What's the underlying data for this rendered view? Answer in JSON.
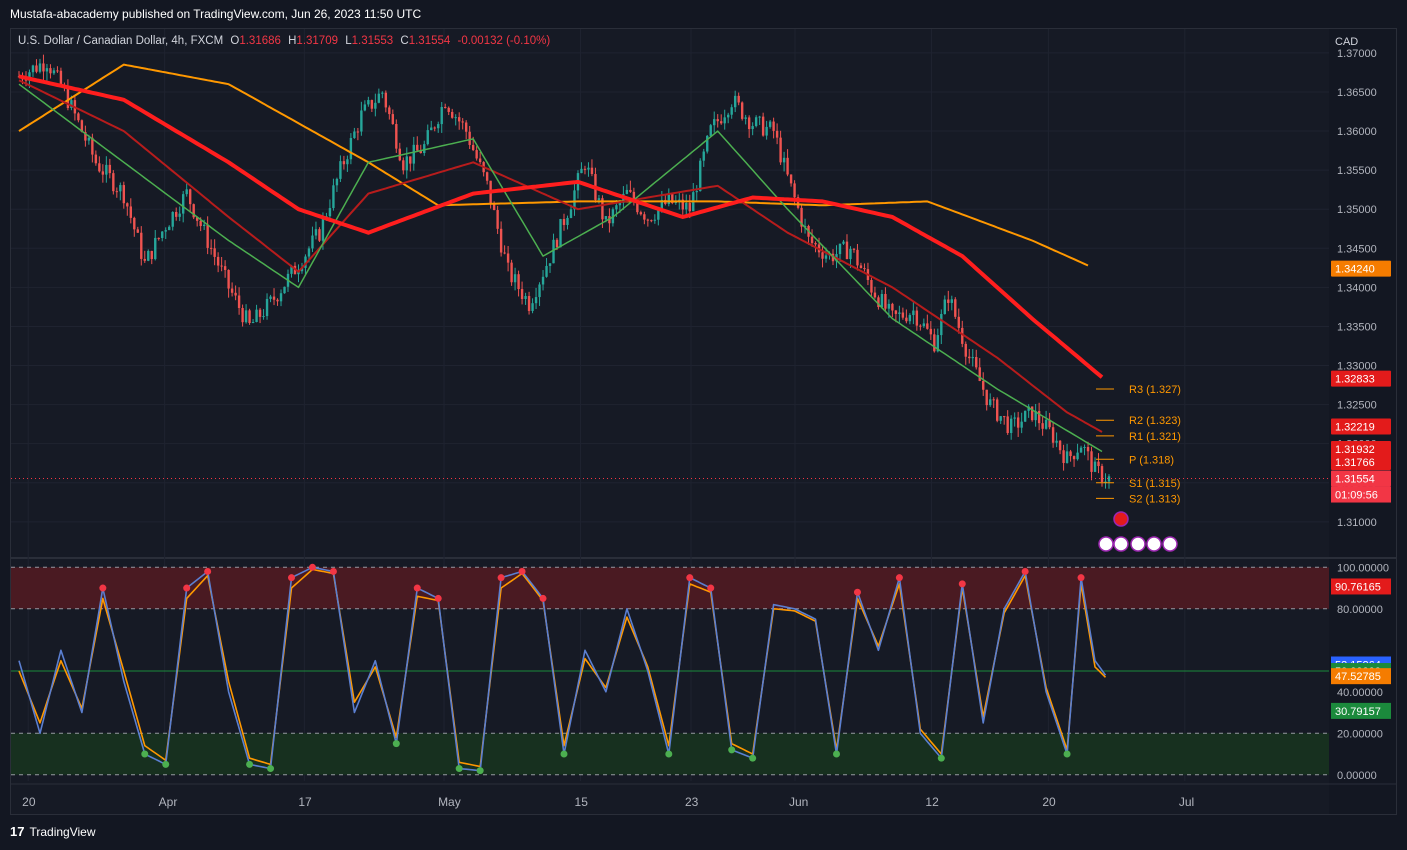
{
  "header": {
    "published": "Mustafa-abacademy published on TradingView.com, Jun 26, 2023 11:50 UTC"
  },
  "legend": {
    "symbol": "U.S. Dollar / Canadian Dollar, 4h, FXCM",
    "o_label": "O",
    "o_value": "1.31686",
    "h_label": "H",
    "h_value": "1.31709",
    "l_label": "L",
    "l_value": "1.31553",
    "c_label": "C",
    "c_value": "1.31554",
    "change": "-0.00132 (-0.10%)"
  },
  "footer": {
    "brand": "TradingView"
  },
  "colors": {
    "bg": "#161a25",
    "grid": "#1f2330",
    "up": "#26a69a",
    "down": "#ef5350",
    "ema_fast_up": "#4caf50",
    "ema_slow_red": "#ff1e1e",
    "ema_mid_red": "#b71c1c",
    "sine": "#ff9800",
    "stoch_k": "#5b7fd1",
    "stoch_d": "#ff9800",
    "ob_zone": "#4a1a22",
    "os_zone": "#17301f",
    "pivot": "#ff9800"
  },
  "chart_data": [
    {
      "type": "candlestick",
      "title": "U.S. Dollar / Canadian Dollar, 4h, FXCM",
      "currency": "CAD",
      "ylim": [
        1.3055,
        1.3705
      ],
      "y_ticks": [
        "1.37000",
        "1.36500",
        "1.36000",
        "1.35500",
        "1.35000",
        "1.34500",
        "1.34000",
        "1.33500",
        "1.33000",
        "1.32500",
        "1.32000",
        "1.31500",
        "1.31000"
      ],
      "x_ticks": [
        "20",
        "Apr",
        "17",
        "May",
        "15",
        "23",
        "Jun",
        "12",
        "20",
        "Jul"
      ],
      "price_path": [
        [
          0,
          1.367
        ],
        [
          8,
          1.369
        ],
        [
          14,
          1.364
        ],
        [
          22,
          1.356
        ],
        [
          30,
          1.352
        ],
        [
          36,
          1.343
        ],
        [
          42,
          1.348
        ],
        [
          48,
          1.352
        ],
        [
          54,
          1.346
        ],
        [
          60,
          1.34
        ],
        [
          66,
          1.335
        ],
        [
          72,
          1.338
        ],
        [
          80,
          1.343
        ],
        [
          86,
          1.347
        ],
        [
          92,
          1.355
        ],
        [
          98,
          1.362
        ],
        [
          104,
          1.365
        ],
        [
          110,
          1.356
        ],
        [
          116,
          1.358
        ],
        [
          122,
          1.364
        ],
        [
          128,
          1.36
        ],
        [
          134,
          1.353
        ],
        [
          140,
          1.342
        ],
        [
          146,
          1.338
        ],
        [
          152,
          1.344
        ],
        [
          158,
          1.351
        ],
        [
          162,
          1.356
        ],
        [
          168,
          1.348
        ],
        [
          174,
          1.352
        ],
        [
          180,
          1.349
        ],
        [
          186,
          1.351
        ],
        [
          192,
          1.35
        ],
        [
          198,
          1.36
        ],
        [
          204,
          1.364
        ],
        [
          210,
          1.361
        ],
        [
          216,
          1.36
        ],
        [
          220,
          1.354
        ],
        [
          226,
          1.346
        ],
        [
          232,
          1.344
        ],
        [
          238,
          1.345
        ],
        [
          244,
          1.34
        ],
        [
          250,
          1.336
        ],
        [
          256,
          1.337
        ],
        [
          262,
          1.333
        ],
        [
          266,
          1.339
        ],
        [
          272,
          1.331
        ],
        [
          278,
          1.325
        ],
        [
          284,
          1.322
        ],
        [
          290,
          1.324
        ],
        [
          296,
          1.321
        ],
        [
          300,
          1.318
        ],
        [
          304,
          1.32
        ],
        [
          308,
          1.3165
        ],
        [
          312,
          1.3155
        ]
      ],
      "indicators": {
        "sine_wave": [
          [
            0,
            1.36
          ],
          [
            30,
            1.3685
          ],
          [
            60,
            1.366
          ],
          [
            100,
            1.356
          ],
          [
            120,
            1.3505
          ],
          [
            160,
            1.351
          ],
          [
            200,
            1.351
          ],
          [
            230,
            1.3505
          ],
          [
            260,
            1.351
          ],
          [
            290,
            1.346
          ],
          [
            306,
            1.3428
          ]
        ],
        "ema_slow": [
          [
            0,
            1.367
          ],
          [
            30,
            1.364
          ],
          [
            60,
            1.356
          ],
          [
            80,
            1.35
          ],
          [
            100,
            1.347
          ],
          [
            130,
            1.352
          ],
          [
            160,
            1.3535
          ],
          [
            190,
            1.349
          ],
          [
            210,
            1.3515
          ],
          [
            230,
            1.351
          ],
          [
            250,
            1.349
          ],
          [
            270,
            1.344
          ],
          [
            290,
            1.336
          ],
          [
            310,
            1.3285
          ]
        ],
        "ema_mid": [
          [
            0,
            1.3665
          ],
          [
            30,
            1.36
          ],
          [
            60,
            1.349
          ],
          [
            80,
            1.342
          ],
          [
            100,
            1.352
          ],
          [
            130,
            1.356
          ],
          [
            160,
            1.35
          ],
          [
            200,
            1.353
          ],
          [
            220,
            1.347
          ],
          [
            250,
            1.34
          ],
          [
            280,
            1.331
          ],
          [
            300,
            1.324
          ],
          [
            310,
            1.3215
          ]
        ],
        "ema_fast": [
          [
            0,
            1.366
          ],
          [
            30,
            1.356
          ],
          [
            60,
            1.346
          ],
          [
            80,
            1.34
          ],
          [
            100,
            1.356
          ],
          [
            130,
            1.359
          ],
          [
            150,
            1.344
          ],
          [
            170,
            1.349
          ],
          [
            200,
            1.36
          ],
          [
            220,
            1.35
          ],
          [
            250,
            1.336
          ],
          [
            280,
            1.327
          ],
          [
            310,
            1.319
          ]
        ]
      },
      "price_labels": [
        {
          "value": "1.34240",
          "color": "#f57c00",
          "level": 1.3424
        },
        {
          "value": "1.32833",
          "color": "#e31b1b",
          "level": 1.32833
        },
        {
          "value": "1.32219",
          "color": "#e31b1b",
          "level": 1.32219
        },
        {
          "value": "1.31932",
          "color": "#e31b1b",
          "level": 1.31932
        },
        {
          "value": "1.31766",
          "color": "#e31b1b",
          "level": 1.31766
        },
        {
          "value": "1.31554",
          "color": "#f23645",
          "level": 1.31554
        }
      ],
      "countdown": "01:09:56",
      "pivots": [
        {
          "label": "R3 (1.327)",
          "level": 1.327
        },
        {
          "label": "R2 (1.323)",
          "level": 1.323
        },
        {
          "label": "R1 (1.321)",
          "level": 1.321
        },
        {
          "label": "P (1.318)",
          "level": 1.318
        },
        {
          "label": "S1 (1.315)",
          "level": 1.315
        },
        {
          "label": "S2 (1.313)",
          "level": 1.313
        }
      ]
    },
    {
      "type": "line",
      "title": "Stochastic RSI",
      "ylim": [
        -3,
        104
      ],
      "y_ticks": [
        "100.00000",
        "80.00000",
        "40.00000",
        "20.00000",
        "0.00000"
      ],
      "levels": [
        100,
        80,
        50,
        20,
        0
      ],
      "k_path": [
        [
          0,
          55
        ],
        [
          6,
          20
        ],
        [
          12,
          60
        ],
        [
          18,
          30
        ],
        [
          24,
          90
        ],
        [
          30,
          45
        ],
        [
          36,
          10
        ],
        [
          42,
          5
        ],
        [
          48,
          90
        ],
        [
          54,
          98
        ],
        [
          60,
          40
        ],
        [
          66,
          5
        ],
        [
          72,
          3
        ],
        [
          78,
          95
        ],
        [
          84,
          100
        ],
        [
          90,
          98
        ],
        [
          96,
          30
        ],
        [
          102,
          55
        ],
        [
          108,
          15
        ],
        [
          114,
          90
        ],
        [
          120,
          85
        ],
        [
          126,
          3
        ],
        [
          132,
          2
        ],
        [
          138,
          95
        ],
        [
          144,
          98
        ],
        [
          150,
          85
        ],
        [
          156,
          10
        ],
        [
          162,
          60
        ],
        [
          168,
          40
        ],
        [
          174,
          80
        ],
        [
          180,
          50
        ],
        [
          186,
          10
        ],
        [
          192,
          95
        ],
        [
          198,
          90
        ],
        [
          204,
          12
        ],
        [
          210,
          8
        ],
        [
          216,
          82
        ],
        [
          222,
          80
        ],
        [
          228,
          75
        ],
        [
          234,
          10
        ],
        [
          240,
          88
        ],
        [
          246,
          60
        ],
        [
          252,
          95
        ],
        [
          258,
          20
        ],
        [
          264,
          8
        ],
        [
          270,
          92
        ],
        [
          276,
          25
        ],
        [
          282,
          80
        ],
        [
          288,
          98
        ],
        [
          294,
          40
        ],
        [
          300,
          10
        ],
        [
          304,
          95
        ],
        [
          308,
          55
        ],
        [
          311,
          48
        ]
      ],
      "d_path": [
        [
          0,
          50
        ],
        [
          6,
          25
        ],
        [
          12,
          55
        ],
        [
          18,
          32
        ],
        [
          24,
          85
        ],
        [
          30,
          50
        ],
        [
          36,
          14
        ],
        [
          42,
          7
        ],
        [
          48,
          85
        ],
        [
          54,
          96
        ],
        [
          60,
          45
        ],
        [
          66,
          8
        ],
        [
          72,
          5
        ],
        [
          78,
          90
        ],
        [
          84,
          99
        ],
        [
          90,
          97
        ],
        [
          96,
          35
        ],
        [
          102,
          52
        ],
        [
          108,
          18
        ],
        [
          114,
          86
        ],
        [
          120,
          84
        ],
        [
          126,
          6
        ],
        [
          132,
          4
        ],
        [
          138,
          90
        ],
        [
          144,
          97
        ],
        [
          150,
          84
        ],
        [
          156,
          14
        ],
        [
          162,
          56
        ],
        [
          168,
          42
        ],
        [
          174,
          76
        ],
        [
          180,
          52
        ],
        [
          186,
          14
        ],
        [
          192,
          92
        ],
        [
          198,
          88
        ],
        [
          204,
          15
        ],
        [
          210,
          10
        ],
        [
          216,
          80
        ],
        [
          222,
          79
        ],
        [
          228,
          74
        ],
        [
          234,
          12
        ],
        [
          240,
          85
        ],
        [
          246,
          62
        ],
        [
          252,
          92
        ],
        [
          258,
          22
        ],
        [
          264,
          10
        ],
        [
          270,
          90
        ],
        [
          276,
          28
        ],
        [
          282,
          78
        ],
        [
          288,
          96
        ],
        [
          294,
          42
        ],
        [
          300,
          12
        ],
        [
          304,
          92
        ],
        [
          308,
          52
        ],
        [
          311,
          47
        ]
      ],
      "value_labels": [
        {
          "value": "90.76165",
          "color": "#e31b1b",
          "level": 90.76
        },
        {
          "value": "53.15264",
          "color": "#2962ff",
          "level": 53.15
        },
        {
          "value": "50.00000",
          "color": "#1b8a3c",
          "level": 50.0
        },
        {
          "value": "47.52785",
          "color": "#f57c00",
          "level": 47.53
        },
        {
          "value": "30.79157",
          "color": "#1b8a3c",
          "level": 30.79
        }
      ]
    }
  ]
}
